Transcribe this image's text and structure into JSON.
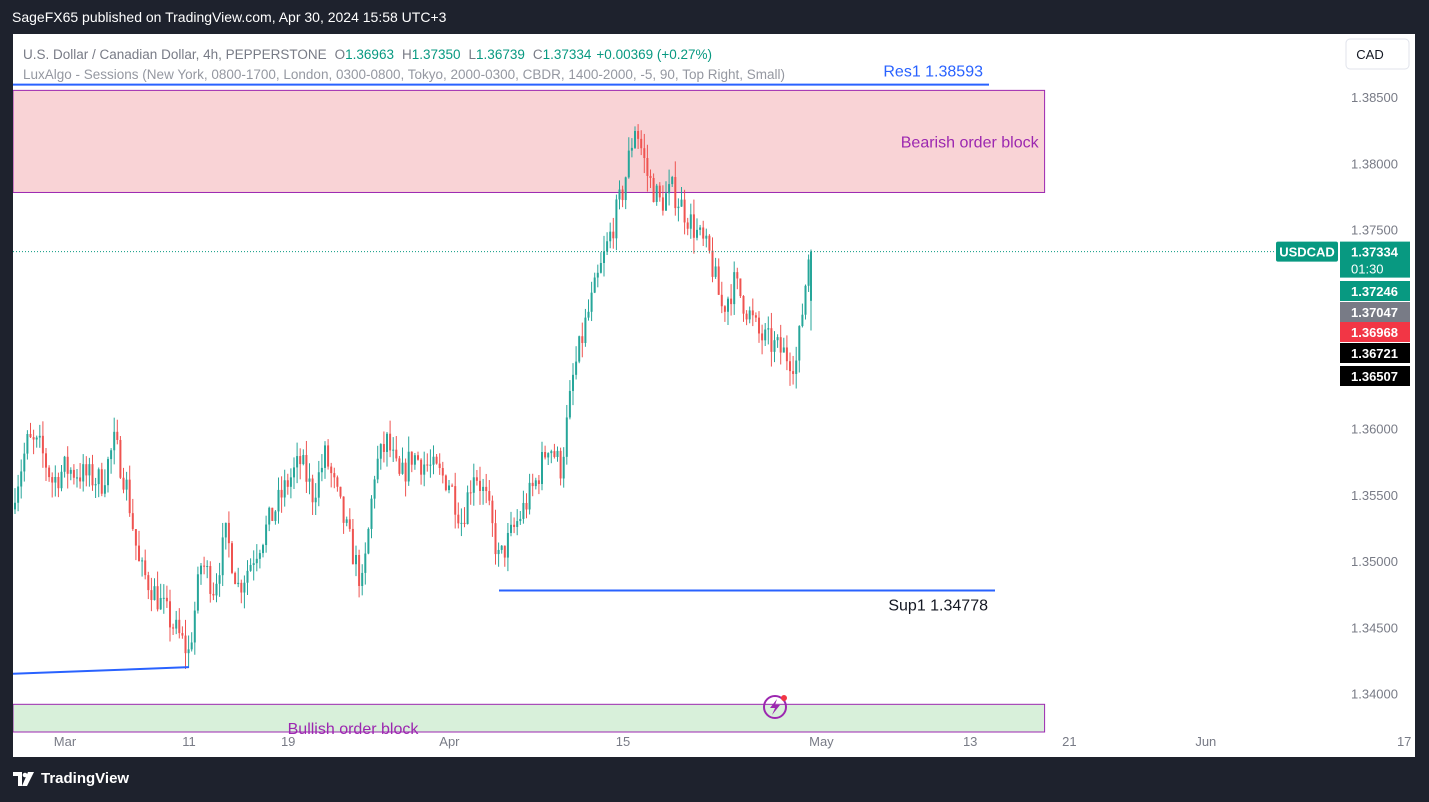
{
  "header": {
    "published": "SageFX65 published on TradingView.com, Apr 30, 2024 15:58 UTC+3"
  },
  "legend": {
    "symbol_line": "U.S. Dollar / Canadian Dollar, 4h, PEPPERSTONE",
    "o_label": "O",
    "o_value": "1.36963",
    "h_label": "H",
    "h_value": "1.37350",
    "l_label": "L",
    "l_value": "1.36739",
    "c_label": "C",
    "c_value": "1.37334",
    "change": "+0.00369 (+0.27%)",
    "indicator": "LuxAlgo - Sessions (New York, 0800-1700, London, 0300-0800, Tokyo, 2000-0300, CBDR, 1400-2000, -5, 90, Top Right, Small)"
  },
  "currency_button": "CAD",
  "footer": {
    "brand": "TradingView"
  },
  "colors": {
    "up": "#26a69a",
    "down": "#ef5350",
    "line": "#2962ff",
    "bear_fill": "#f9d3d6",
    "bull_fill": "#d8f0da",
    "box_border": "#9c27b0",
    "label_purple": "#9c27b0",
    "res_label": "#2962ff"
  },
  "chart_data": {
    "type": "candlestick",
    "symbol": "USDCAD",
    "timeframe": "4h",
    "ylim": [
      1.3375,
      1.3875
    ],
    "yticks": [
      1.385,
      1.38,
      1.375,
      1.36,
      1.355,
      1.35,
      1.345,
      1.34
    ],
    "ytick_labels": [
      "1.38500",
      "1.38000",
      "1.37500",
      "1.36000",
      "1.35500",
      "1.35000",
      "1.34500",
      "1.34000"
    ],
    "xticks": [
      {
        "label": "Mar",
        "date": "2024-03-01"
      },
      {
        "label": "11",
        "date": "2024-03-11"
      },
      {
        "label": "19",
        "date": "2024-03-19"
      },
      {
        "label": "Apr",
        "date": "2024-04-01"
      },
      {
        "label": "15",
        "date": "2024-04-15"
      },
      {
        "label": "May",
        "date": "2024-05-01"
      },
      {
        "label": "13",
        "date": "2024-05-13"
      },
      {
        "label": "21",
        "date": "2024-05-21"
      },
      {
        "label": "Jun",
        "date": "2024-06-01"
      },
      {
        "label": "17",
        "date": "2024-06-17"
      }
    ],
    "path": [
      [
        "2024-02-26",
        1.3555
      ],
      [
        "2024-02-27",
        1.359
      ],
      [
        "2024-02-28",
        1.3585
      ],
      [
        "2024-02-29",
        1.356
      ],
      [
        "2024-03-01",
        1.357
      ],
      [
        "2024-03-04",
        1.356
      ],
      [
        "2024-03-05",
        1.359
      ],
      [
        "2024-03-06",
        1.3555
      ],
      [
        "2024-03-07",
        1.3495
      ],
      [
        "2024-03-08",
        1.348
      ],
      [
        "2024-03-11",
        1.343
      ],
      [
        "2024-03-12",
        1.35
      ],
      [
        "2024-03-13",
        1.348
      ],
      [
        "2024-03-14",
        1.352
      ],
      [
        "2024-03-15",
        1.348
      ],
      [
        "2024-03-18",
        1.354
      ],
      [
        "2024-03-19",
        1.356
      ],
      [
        "2024-03-20",
        1.3575
      ],
      [
        "2024-03-21",
        1.355
      ],
      [
        "2024-03-22",
        1.358
      ],
      [
        "2024-03-25",
        1.348
      ],
      [
        "2024-03-26",
        1.357
      ],
      [
        "2024-03-27",
        1.359
      ],
      [
        "2024-03-28",
        1.356
      ],
      [
        "2024-03-29",
        1.358
      ],
      [
        "2024-04-01",
        1.356
      ],
      [
        "2024-04-02",
        1.353
      ],
      [
        "2024-04-03",
        1.357
      ],
      [
        "2024-04-04",
        1.3545
      ],
      [
        "2024-04-05",
        1.35
      ],
      [
        "2024-04-08",
        1.356
      ],
      [
        "2024-04-09",
        1.359
      ],
      [
        "2024-04-10",
        1.357
      ],
      [
        "2024-04-11",
        1.364
      ],
      [
        "2024-04-12",
        1.368
      ],
      [
        "2024-04-15",
        1.378
      ],
      [
        "2024-04-16",
        1.383
      ],
      [
        "2024-04-17",
        1.379
      ],
      [
        "2024-04-18",
        1.377
      ],
      [
        "2024-04-19",
        1.378
      ],
      [
        "2024-04-22",
        1.373
      ],
      [
        "2024-04-23",
        1.369
      ],
      [
        "2024-04-24",
        1.371
      ],
      [
        "2024-04-25",
        1.369
      ],
      [
        "2024-04-26",
        1.367
      ],
      [
        "2024-04-29",
        1.365
      ],
      [
        "2024-04-30",
        1.3733
      ]
    ],
    "bearish_order_block": {
      "label": "Bearish order block",
      "top": 1.3855,
      "bottom": 1.3778,
      "from": "2024-02-26",
      "to": "2024-05-19"
    },
    "bullish_order_block": {
      "label": "Bullish order block",
      "top": 1.3392,
      "bottom": 1.3378,
      "from": "2024-02-26",
      "to": "2024-05-19"
    },
    "resistance": {
      "label": "Res1 1.38593",
      "value": 1.38593
    },
    "support": {
      "label": "Sup1 1.34778",
      "value": 1.34778,
      "from": "2024-04-05"
    },
    "trendline": {
      "from": [
        "2024-02-26",
        1.3415
      ],
      "to": [
        "2024-03-11",
        1.342
      ]
    },
    "current_price_line": 1.37334,
    "price_labels": [
      {
        "text": "USDCAD",
        "kind": "symbol"
      },
      {
        "text": "1.37334",
        "sub": "01:30",
        "value": 1.37334,
        "color": "#089981"
      },
      {
        "text": "1.37246",
        "value": 1.37246,
        "color": "#089981"
      },
      {
        "text": "1.37047",
        "value": 1.37047,
        "color": "#787b86"
      },
      {
        "text": "1.36968",
        "value": 1.36968,
        "color": "#f23645"
      },
      {
        "text": "1.36721",
        "value": 1.36721,
        "color": "#000000"
      },
      {
        "text": "1.36507",
        "value": 1.36507,
        "color": "#000000"
      }
    ]
  }
}
